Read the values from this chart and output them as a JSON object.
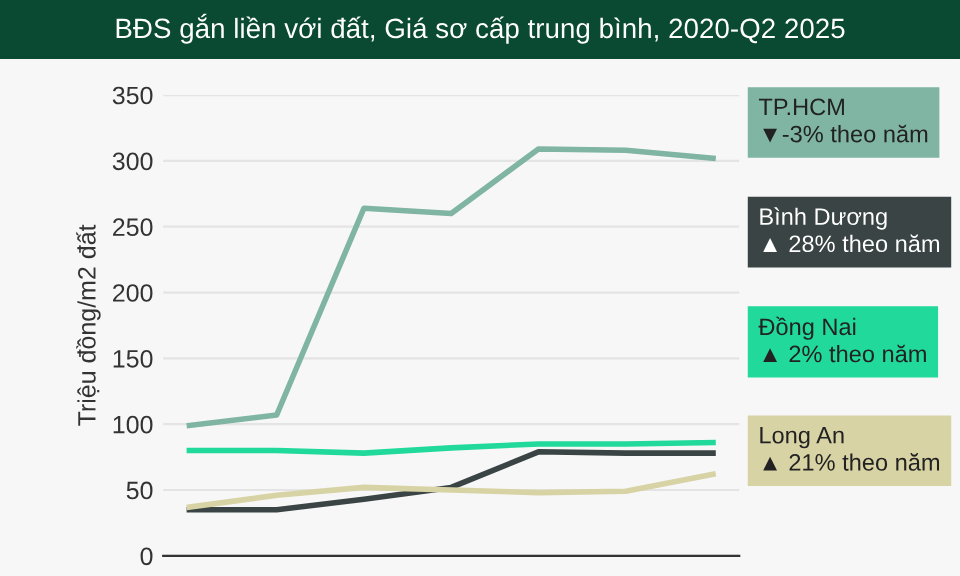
{
  "chart_data": {
    "type": "line",
    "title": "BĐS gắn liền với đất, Giá sơ cấp trung bình, 2020-Q2 2025",
    "ylabel": "Triệu đồng/m2 đất",
    "categories": [
      null,
      null,
      null,
      null,
      null,
      null,
      null
    ],
    "series": [
      {
        "name": "TP.HCM",
        "color": "#7fb5a2",
        "values": [
          99,
          107,
          264,
          260,
          309,
          308,
          302
        ]
      },
      {
        "name": "Bình Dương",
        "color": "#3b4444",
        "values": [
          35,
          35,
          43,
          52,
          79,
          78,
          78
        ]
      },
      {
        "name": "Đồng Nai",
        "color": "#20d99a",
        "values": [
          80,
          80,
          78,
          82,
          85,
          85,
          86
        ]
      },
      {
        "name": "Long An",
        "color": "#d8d3a4",
        "values": [
          37,
          46,
          52,
          50,
          48,
          49,
          62
        ]
      }
    ],
    "annotations": [
      "▼-3% theo năm",
      "▲ 28% theo năm",
      "▲ 2% theo năm",
      "▲ 21% theo năm"
    ],
    "ylim": [
      0,
      350
    ],
    "yticks": [
      0,
      50,
      100,
      150,
      200,
      250,
      300,
      350
    ],
    "grid": "y",
    "legend": "right",
    "marker": "none",
    "line_style": "solid"
  }
}
